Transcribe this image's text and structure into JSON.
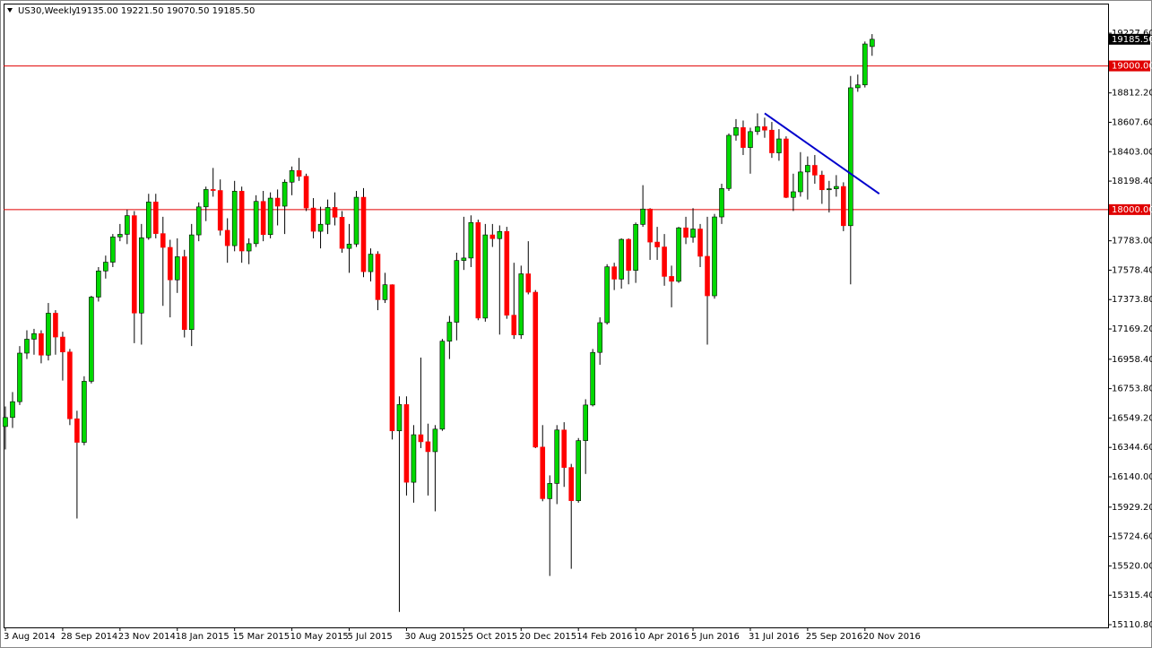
{
  "header": {
    "symbol": "US30,Weekly",
    "ohlc": "19135.00 19221.50 19070.50 19185.50"
  },
  "chart_data": {
    "type": "candlestick",
    "categories": [
      "3 Aug 2014",
      null,
      null,
      null,
      null,
      null,
      null,
      null,
      "28 Sep 2014",
      null,
      null,
      null,
      null,
      null,
      null,
      null,
      "23 Nov 2014",
      null,
      null,
      null,
      null,
      null,
      null,
      null,
      "18 Jan 2015",
      null,
      null,
      null,
      null,
      null,
      null,
      null,
      "15 Mar 2015",
      null,
      null,
      null,
      null,
      null,
      null,
      null,
      "10 May 2015",
      null,
      null,
      null,
      null,
      null,
      null,
      null,
      "5 Jul 2015",
      null,
      null,
      null,
      null,
      null,
      null,
      null,
      "30 Aug 2015",
      null,
      null,
      null,
      null,
      null,
      null,
      null,
      "25 Oct 2015",
      null,
      null,
      null,
      null,
      null,
      null,
      null,
      "20 Dec 2015",
      null,
      null,
      null,
      null,
      null,
      null,
      null,
      "14 Feb 2016",
      null,
      null,
      null,
      null,
      null,
      null,
      null,
      "10 Apr 2016",
      null,
      null,
      null,
      null,
      null,
      null,
      null,
      "5 Jun 2016",
      null,
      null,
      null,
      null,
      null,
      null,
      null,
      "31 Jul 2016",
      null,
      null,
      null,
      null,
      null,
      null,
      null,
      "25 Sep 2016",
      null,
      null,
      null,
      null,
      null,
      null,
      null,
      "20 Nov 2016",
      null
    ],
    "open": [
      16490,
      16553,
      16663,
      17001,
      17098,
      17137,
      16987,
      17279,
      17113,
      17009,
      16544,
      16380,
      16805,
      17391,
      17573,
      17634,
      17810,
      17828,
      17958,
      17280,
      17804,
      18053,
      17833,
      17737,
      17511,
      17672,
      17165,
      17824,
      18019,
      18140,
      18133,
      17856,
      17749,
      18128,
      17712,
      17763,
      18057,
      17826,
      18080,
      18024,
      18191,
      18272,
      18232,
      18011,
      17849,
      17898,
      18015,
      17947,
      17730,
      17760,
      18086,
      17568,
      17690,
      17373,
      17477,
      16460,
      16643,
      16102,
      16433,
      16384,
      16315,
      16472,
      17084,
      17216,
      17646,
      17663,
      17910,
      17245,
      17824,
      17798,
      17848,
      17265,
      17128,
      17553,
      17425,
      16347,
      15988,
      16094,
      16466,
      16205,
      15974,
      16392,
      16640,
      17006,
      17213,
      17602,
      17516,
      17793,
      17577,
      17897,
      18004,
      17774,
      17740,
      17535,
      17501,
      17873,
      17807,
      17865,
      17675,
      17400,
      17949,
      18147,
      18517,
      18571,
      18432,
      18543,
      18577,
      18553,
      18395,
      18492,
      18085,
      18124,
      18262,
      18308,
      18240,
      18138,
      18145,
      18161,
      17888,
      18848,
      18868,
      19135
    ],
    "high": [
      16630,
      16730,
      17050,
      17160,
      17170,
      17160,
      17350,
      17300,
      17150,
      17030,
      16600,
      16840,
      17400,
      17600,
      17680,
      17830,
      17900,
      18000,
      17990,
      17900,
      18110,
      18110,
      17950,
      17790,
      17800,
      17720,
      17900,
      18050,
      18160,
      18290,
      18210,
      17940,
      18200,
      18160,
      17800,
      18100,
      18130,
      18120,
      18140,
      18210,
      18300,
      18360,
      18250,
      18080,
      18020,
      18070,
      18120,
      17990,
      17900,
      18130,
      18150,
      17730,
      17710,
      17560,
      17480,
      16700,
      16700,
      16500,
      16970,
      16510,
      16500,
      17100,
      17260,
      17700,
      17950,
      17960,
      17930,
      17900,
      17900,
      17890,
      17880,
      17630,
      17610,
      17780,
      17440,
      16500,
      16150,
      16500,
      16520,
      16230,
      16410,
      16680,
      17030,
      17250,
      17620,
      17630,
      17800,
      17800,
      17910,
      18170,
      18010,
      17880,
      17830,
      17610,
      17880,
      17950,
      18010,
      17900,
      17950,
      17970,
      18180,
      18530,
      18630,
      18620,
      18570,
      18670,
      18640,
      18610,
      18560,
      18510,
      18250,
      18400,
      18370,
      18380,
      18270,
      18200,
      18240,
      18190,
      18930,
      18940,
      19170,
      19221.5
    ],
    "low": [
      16330,
      16480,
      16640,
      16960,
      16990,
      16930,
      16950,
      16990,
      16810,
      16500,
      15850,
      16360,
      16790,
      17360,
      17520,
      17600,
      17780,
      17760,
      17070,
      17060,
      17790,
      17800,
      17330,
      17250,
      17420,
      17110,
      17050,
      17780,
      17920,
      18090,
      17820,
      17630,
      17710,
      17630,
      17620,
      17740,
      17780,
      17800,
      17890,
      17830,
      18100,
      18200,
      17990,
      17800,
      17730,
      17830,
      17890,
      17700,
      17560,
      17740,
      17530,
      17500,
      17300,
      17350,
      16400,
      15200,
      16010,
      15960,
      16340,
      16010,
      15900,
      16460,
      16960,
      17090,
      17580,
      17600,
      17230,
      17220,
      17740,
      17130,
      17240,
      17100,
      17100,
      17410,
      16340,
      15970,
      15450,
      15950,
      16070,
      15500,
      15960,
      16160,
      16630,
      16920,
      17200,
      17440,
      17450,
      17480,
      17490,
      17880,
      17650,
      17650,
      17470,
      17320,
      17490,
      17760,
      17770,
      17600,
      17060,
      17380,
      17900,
      18130,
      18480,
      18380,
      18250,
      18520,
      18500,
      18360,
      18340,
      18080,
      17990,
      18090,
      18070,
      18180,
      18040,
      17980,
      18090,
      17850,
      17480,
      18820,
      18850,
      19070.5
    ],
    "close": [
      16553,
      16663,
      17001,
      17098,
      17137,
      16987,
      17279,
      17113,
      17009,
      16544,
      16380,
      16805,
      17391,
      17573,
      17634,
      17810,
      17828,
      17958,
      17280,
      17804,
      18053,
      17833,
      17737,
      17511,
      17672,
      17165,
      17824,
      18019,
      18140,
      18133,
      17856,
      17749,
      18128,
      17712,
      17763,
      18057,
      17826,
      18080,
      18024,
      18191,
      18272,
      18232,
      18011,
      17849,
      17898,
      18015,
      17947,
      17730,
      17760,
      18086,
      17568,
      17690,
      17373,
      17477,
      16460,
      16643,
      16102,
      16433,
      16384,
      16315,
      16472,
      17084,
      17216,
      17646,
      17663,
      17910,
      17245,
      17824,
      17798,
      17848,
      17265,
      17128,
      17553,
      17425,
      16347,
      15988,
      16094,
      16466,
      16205,
      15974,
      16392,
      16640,
      17006,
      17213,
      17602,
      17516,
      17793,
      17577,
      17897,
      18004,
      17774,
      17740,
      17535,
      17501,
      17873,
      17807,
      17865,
      17675,
      17400,
      17949,
      18147,
      18517,
      18571,
      18432,
      18543,
      18577,
      18553,
      18395,
      18492,
      18085,
      18124,
      18262,
      18308,
      18240,
      18138,
      18145,
      18161,
      17888,
      18848,
      18868,
      19153,
      19185.5
    ],
    "up_color": "#00d800",
    "down_color": "#ff0000",
    "ylim": [
      15092,
      19434
    ],
    "yticks": [
      {
        "value": 19227.6,
        "label": "19227.60"
      },
      {
        "value": 18812.2,
        "label": "18812.20"
      },
      {
        "value": 18607.6,
        "label": "18607.60"
      },
      {
        "value": 18403,
        "label": "18403.00"
      },
      {
        "value": 18198.4,
        "label": "18198.40"
      },
      {
        "value": 17783,
        "label": "17783.00"
      },
      {
        "value": 17578.4,
        "label": "17578.40"
      },
      {
        "value": 17373.8,
        "label": "17373.80"
      },
      {
        "value": 17169.2,
        "label": "17169.20"
      },
      {
        "value": 16958.4,
        "label": "16958.40"
      },
      {
        "value": 16753.8,
        "label": "16753.80"
      },
      {
        "value": 16549.2,
        "label": "16549.20"
      },
      {
        "value": 16344.6,
        "label": "16344.60"
      },
      {
        "value": 16140,
        "label": "16140.00"
      },
      {
        "value": 15929.2,
        "label": "15929.20"
      },
      {
        "value": 15724.6,
        "label": "15724.60"
      },
      {
        "value": 15520,
        "label": "15520.00"
      },
      {
        "value": 15315.4,
        "label": "15315.40"
      },
      {
        "value": 15110.8,
        "label": "15110.80"
      }
    ],
    "hlines": [
      {
        "value": 19000,
        "label": "19000.00",
        "color": "#e00000"
      },
      {
        "value": 18000,
        "label": "18000.00",
        "color": "#e00000"
      }
    ],
    "last_price": {
      "value": 19185.5,
      "label": "19185.50"
    },
    "trendline": {
      "start_index": 106,
      "start_price": 18670,
      "end_index": 122,
      "end_price": 18110,
      "color": "#0000cc"
    }
  }
}
